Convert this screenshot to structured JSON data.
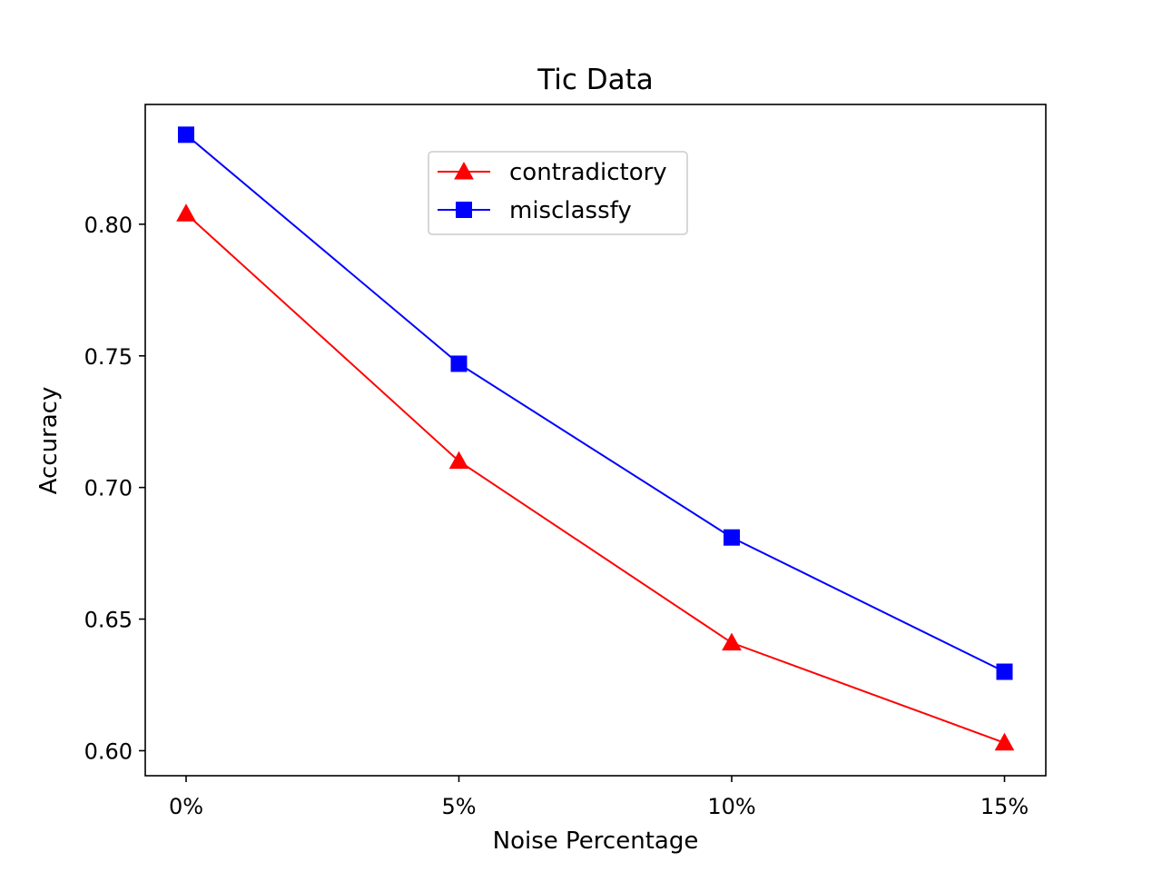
{
  "chart_data": {
    "type": "line",
    "title": "Tic Data",
    "xlabel": "Noise Percentage",
    "ylabel": "Accuracy",
    "categories": [
      "0%",
      "5%",
      "10%",
      "15%"
    ],
    "y_ticks": [
      0.6,
      0.65,
      0.7,
      0.75,
      0.8
    ],
    "y_tick_labels": [
      "0.60",
      "0.65",
      "0.70",
      "0.75",
      "0.80"
    ],
    "ylim": [
      0.5905,
      0.8455
    ],
    "grid": false,
    "legend_position": "upper-center",
    "series": [
      {
        "name": "contradictory",
        "color": "#ff0000",
        "marker": "triangle",
        "values": [
          0.804,
          0.71,
          0.641,
          0.603
        ]
      },
      {
        "name": "misclassfy",
        "color": "#0000ff",
        "marker": "square",
        "values": [
          0.834,
          0.747,
          0.681,
          0.63
        ]
      }
    ]
  }
}
